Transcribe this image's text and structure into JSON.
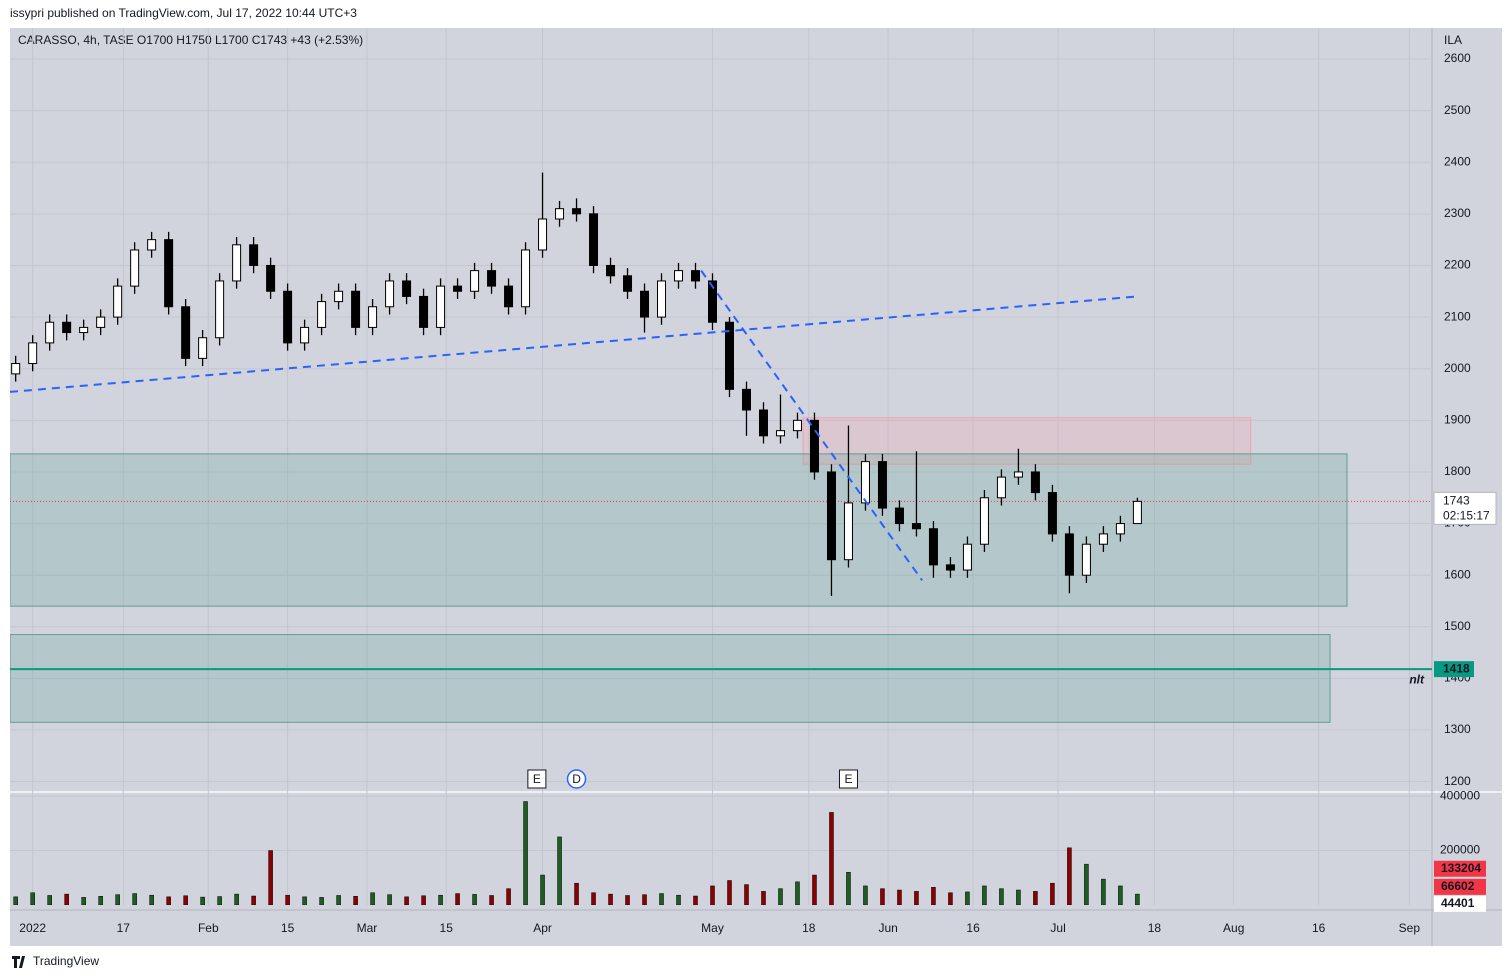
{
  "header": {
    "published": "issypri published on TradingView.com, Jul 17, 2022 10:44 UTC+3",
    "brand": "TradingView"
  },
  "chart_data": {
    "type": "candlestick",
    "legend": "CARASSO, 4h, TASE  O1700  H1750  L1700  C1743  +43 (+2.53%)",
    "currency": "ILA",
    "x": [
      -3,
      0,
      3,
      6,
      9,
      12,
      15,
      18,
      21,
      24,
      27,
      30,
      33,
      36,
      39,
      42,
      45,
      48,
      51,
      54,
      57,
      60,
      63,
      66,
      69,
      72,
      75,
      78,
      81,
      84,
      87,
      90,
      93,
      96,
      99,
      102,
      105,
      108,
      111,
      114,
      117,
      120,
      123,
      126,
      129,
      132,
      135,
      138,
      141,
      144,
      147,
      150,
      153,
      156,
      159,
      162,
      165,
      168,
      171,
      174,
      177,
      180,
      183,
      186,
      189,
      192,
      195
    ],
    "open": [
      1990,
      2010,
      2050,
      2090,
      2070,
      2080,
      2100,
      2160,
      2230,
      2250,
      2120,
      2020,
      2060,
      2170,
      2240,
      2200,
      2150,
      2050,
      2080,
      2130,
      2150,
      2080,
      2120,
      2170,
      2140,
      2080,
      2160,
      2150,
      2190,
      2160,
      2120,
      2230,
      2290,
      2310,
      2300,
      2200,
      2180,
      2150,
      2100,
      2170,
      2190,
      2170,
      2090,
      1960,
      1920,
      1870,
      1880,
      1900,
      1800,
      1630,
      1740,
      1820,
      1730,
      1700,
      1690,
      1620,
      1610,
      1660,
      1750,
      1790,
      1800,
      1760,
      1680,
      1600,
      1660,
      1680,
      1700
    ],
    "high": [
      2025,
      2065,
      2105,
      2105,
      2095,
      2115,
      2175,
      2245,
      2265,
      2265,
      2135,
      2075,
      2185,
      2255,
      2255,
      2215,
      2165,
      2095,
      2145,
      2165,
      2165,
      2135,
      2185,
      2185,
      2155,
      2175,
      2175,
      2205,
      2205,
      2175,
      2245,
      2380,
      2325,
      2330,
      2315,
      2215,
      2195,
      2165,
      2185,
      2205,
      2205,
      2185,
      2100,
      1975,
      1935,
      1950,
      1915,
      1915,
      1815,
      1890,
      1835,
      1835,
      1745,
      1840,
      1705,
      1635,
      1675,
      1765,
      1805,
      1845,
      1815,
      1775,
      1695,
      1675,
      1695,
      1715,
      1750
    ],
    "low": [
      1975,
      1995,
      2035,
      2055,
      2055,
      2065,
      2085,
      2145,
      2215,
      2105,
      2005,
      2005,
      2045,
      2155,
      2185,
      2135,
      2035,
      2035,
      2065,
      2115,
      2065,
      2065,
      2105,
      2125,
      2065,
      2065,
      2135,
      2135,
      2145,
      2105,
      2105,
      2215,
      2275,
      2285,
      2185,
      2165,
      2135,
      2070,
      2085,
      2155,
      2155,
      2075,
      1945,
      1870,
      1855,
      1855,
      1865,
      1785,
      1560,
      1615,
      1725,
      1715,
      1685,
      1675,
      1595,
      1595,
      1595,
      1645,
      1735,
      1775,
      1745,
      1665,
      1565,
      1585,
      1645,
      1665,
      1700
    ],
    "close": [
      2010,
      2050,
      2090,
      2070,
      2080,
      2100,
      2160,
      2230,
      2250,
      2120,
      2020,
      2060,
      2170,
      2240,
      2200,
      2150,
      2050,
      2080,
      2130,
      2150,
      2080,
      2120,
      2170,
      2140,
      2080,
      2160,
      2150,
      2190,
      2160,
      2120,
      2230,
      2290,
      2310,
      2300,
      2200,
      2180,
      2150,
      2100,
      2170,
      2190,
      2170,
      2090,
      1960,
      1920,
      1870,
      1880,
      1900,
      1800,
      1630,
      1740,
      1820,
      1730,
      1700,
      1690,
      1620,
      1610,
      1660,
      1750,
      1790,
      1800,
      1760,
      1680,
      1600,
      1660,
      1680,
      1700,
      1743
    ],
    "volume": [
      30000,
      45000,
      35000,
      40000,
      28000,
      32000,
      38000,
      42000,
      36000,
      30000,
      34000,
      29000,
      31000,
      40000,
      33000,
      200000,
      36000,
      30000,
      28000,
      35000,
      32000,
      45000,
      38000,
      30000,
      34000,
      36000,
      42000,
      39000,
      35000,
      60000,
      380000,
      110000,
      250000,
      80000,
      45000,
      40000,
      35000,
      38000,
      42000,
      36000,
      33000,
      70000,
      90000,
      75000,
      50000,
      60000,
      85000,
      110000,
      340000,
      120000,
      70000,
      60000,
      55000,
      50000,
      65000,
      45000,
      48000,
      70000,
      60000,
      55000,
      50000,
      80000,
      210000,
      150000,
      95000,
      70000,
      40000
    ],
    "up_color": "#ffffff",
    "down_color": "#000000",
    "wick_color": "#000000",
    "volume_up_color": "#1b5e20",
    "volume_down_color": "#8e0000",
    "xlim": [
      -4,
      247
    ],
    "xticks": [
      {
        "value": 0,
        "label": "2022"
      },
      {
        "value": 16,
        "label": "17"
      },
      {
        "value": 31,
        "label": "Feb"
      },
      {
        "value": 45,
        "label": "15"
      },
      {
        "value": 59,
        "label": "Mar"
      },
      {
        "value": 73,
        "label": "15"
      },
      {
        "value": 90,
        "label": "Apr"
      },
      {
        "value": 120,
        "label": "May"
      },
      {
        "value": 137,
        "label": "18"
      },
      {
        "value": 151,
        "label": "Jun"
      },
      {
        "value": 166,
        "label": "16"
      },
      {
        "value": 181,
        "label": "Jul"
      },
      {
        "value": 198,
        "label": "18"
      },
      {
        "value": 212,
        "label": "Aug"
      },
      {
        "value": 227,
        "label": "16"
      },
      {
        "value": 243,
        "label": "Sep"
      }
    ],
    "ylim": [
      1180,
      2660
    ],
    "yticks": [
      1200,
      1300,
      1400,
      1500,
      1600,
      1700,
      1800,
      1900,
      2000,
      2100,
      2200,
      2300,
      2400,
      2500,
      2600
    ],
    "vlim": [
      0,
      415000
    ],
    "vticks": [
      200000,
      400000
    ],
    "volume_badges": [
      {
        "value": 133204,
        "color": "#f23645"
      },
      {
        "value": 66602,
        "color": "#f23645"
      },
      {
        "value": 44401,
        "color": "#ffffff"
      }
    ],
    "grid": true,
    "trendlines": [
      {
        "x": [
          -4,
          195
        ],
        "y": [
          1955,
          2140
        ],
        "color": "#2962ff"
      },
      {
        "x": [
          118,
          157
        ],
        "y": [
          2190,
          1590
        ],
        "color": "#2962ff"
      }
    ],
    "zones": [
      {
        "x": [
          136,
          215
        ],
        "y": [
          1905,
          1815
        ],
        "color": "#f7a1ad"
      },
      {
        "x": [
          -4,
          232
        ],
        "y": [
          1835,
          1540
        ],
        "color": "#5f9e95"
      },
      {
        "x": [
          -4,
          229
        ],
        "y": [
          1485,
          1315
        ],
        "color": "#5f9e95"
      }
    ],
    "hline": {
      "value": 1418,
      "text": "nlt",
      "color": "#089981"
    },
    "last_price": 1743,
    "countdown": "02:15:17",
    "events": [
      {
        "x": 89,
        "label": "E"
      },
      {
        "x": 96,
        "label": "D"
      },
      {
        "x": 144,
        "label": "E"
      }
    ]
  }
}
